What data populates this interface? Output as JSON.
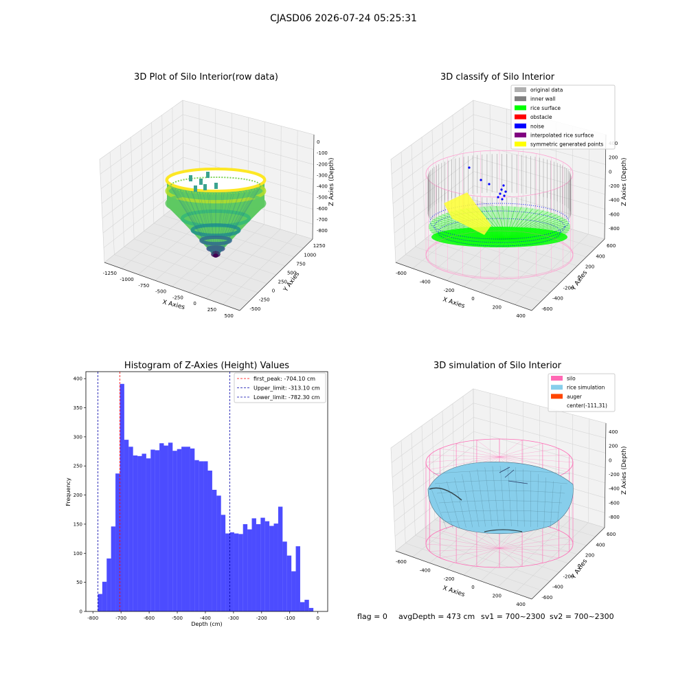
{
  "suptitle": "CJASD06 2026-07-24 05:25:31",
  "panels": {
    "raw": {
      "title": "3D Plot of Silo Interior(row data)",
      "xlabel": "X Axies",
      "ylabel": "Y Axies",
      "zlabel": "Z Axies (Depth)",
      "xticks": [
        "-1250",
        "-1000",
        "-750",
        "-500",
        "-250",
        "0",
        "250",
        "500"
      ],
      "yticks": [
        "-500",
        "-250",
        "0",
        "250",
        "500",
        "750",
        "1000",
        "1250"
      ],
      "zticks": [
        "0",
        "-100",
        "-200",
        "-300",
        "-400",
        "-500",
        "-600",
        "-700",
        "-800"
      ],
      "colormap": [
        "#440154",
        "#3b528b",
        "#21918c",
        "#5ec962",
        "#fde725"
      ]
    },
    "classify": {
      "title": "3D classify of Silo Interior",
      "xlabel": "X Axies",
      "ylabel": "Y Axies",
      "zlabel": "Z Axies (Depth)",
      "xticks": [
        "-600",
        "-400",
        "-200",
        "0",
        "200",
        "400"
      ],
      "yticks": [
        "-600",
        "-400",
        "-200",
        "0",
        "200",
        "400",
        "600"
      ],
      "zticks": [
        "400",
        "200",
        "0",
        "-200",
        "-400",
        "-600",
        "-800"
      ],
      "legend": [
        {
          "label": "original data",
          "color": "#b0b0b0"
        },
        {
          "label": "inner wall",
          "color": "#808080"
        },
        {
          "label": "rice surface",
          "color": "#00ff00"
        },
        {
          "label": "obstacle",
          "color": "#ff0000"
        },
        {
          "label": "noise",
          "color": "#0000ff"
        },
        {
          "label": "interpolated rice surface",
          "color": "#800080"
        },
        {
          "label": "symmetric generated points",
          "color": "#ffff00"
        }
      ]
    },
    "simulation": {
      "title": "3D simulation of Silo Interior",
      "xlabel": "X Axies",
      "ylabel": "Y Axies",
      "zlabel": "Z Axies (Depth)",
      "xticks": [
        "-600",
        "-400",
        "-200",
        "0",
        "200",
        "400"
      ],
      "yticks": [
        "-600",
        "-400",
        "-200",
        "0",
        "200",
        "400",
        "600"
      ],
      "zticks": [
        "400",
        "200",
        "0",
        "-200",
        "-400",
        "-600",
        "-800"
      ],
      "legend": [
        {
          "label": "silo",
          "color": "#ff69b4"
        },
        {
          "label": "rice simulation",
          "color": "#87ceeb"
        },
        {
          "label": "auger",
          "color": "#ff4500"
        },
        {
          "label": "center(-111,31)",
          "color": ""
        }
      ],
      "status": {
        "flag": "flag = 0",
        "avg": "avgDepth = 473 cm",
        "sv1": "sv1 = 700~2300",
        "sv2": "sv2 = 700~2300"
      }
    }
  },
  "chart_data": {
    "type": "bar",
    "title": "Histogram of Z-Axies (Height) Values",
    "xlabel": "Depth (cm)",
    "ylabel": "Frequency",
    "xlim": [
      -825,
      35
    ],
    "ylim": [
      0,
      412
    ],
    "xticks": [
      -800,
      -700,
      -600,
      -500,
      -400,
      -300,
      -200,
      -100,
      0
    ],
    "yticks": [
      0,
      50,
      100,
      150,
      200,
      250,
      300,
      350,
      400
    ],
    "bar_color": "#0000ff",
    "bin_start": -782.3,
    "bin_width": 15.64,
    "values": [
      30,
      51,
      91,
      146,
      237,
      391,
      295,
      283,
      268,
      267,
      271,
      263,
      278,
      277,
      289,
      285,
      290,
      276,
      279,
      283,
      283,
      280,
      260,
      258,
      258,
      242,
      209,
      199,
      166,
      134,
      136,
      134,
      133,
      150,
      141,
      160,
      150,
      161,
      155,
      147,
      151,
      180,
      120,
      96,
      69,
      112,
      16,
      20,
      6
    ],
    "vlines": [
      {
        "value": -704.1,
        "color": "#ff0000",
        "label": "first_peak: -704.10 cm"
      },
      {
        "value": -313.1,
        "color": "#0000aa",
        "label": "Upper_limit: -313.10 cm"
      },
      {
        "value": -782.3,
        "color": "#0000aa",
        "label": "Lower_limit: -782.30 cm"
      }
    ]
  }
}
